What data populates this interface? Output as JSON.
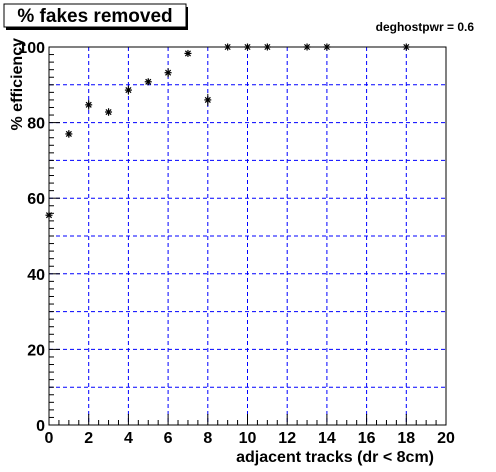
{
  "chart_data": {
    "type": "scatter",
    "title": "% fakes removed",
    "annotation": "deghostpwr = 0.6",
    "xlabel": "adjacent tracks (dr < 8cm)",
    "ylabel": "% efficiency",
    "xlim": [
      0,
      20
    ],
    "ylim": [
      0,
      100
    ],
    "x_ticks": [
      0,
      2,
      4,
      6,
      8,
      10,
      12,
      14,
      16,
      18,
      20
    ],
    "y_ticks": [
      0,
      20,
      40,
      60,
      80,
      100
    ],
    "x_tick_labels": [
      "0",
      "2",
      "4",
      "6",
      "8",
      "10",
      "12",
      "14",
      "16",
      "18",
      "20"
    ],
    "y_tick_labels": [
      "0",
      "20",
      "40",
      "60",
      "80",
      "100"
    ],
    "grid": true,
    "marker": "asterisk",
    "colors": {
      "grid": "#0000ff",
      "points": "#000000",
      "frame": "#000000"
    },
    "points": [
      {
        "x": 0,
        "y": 55.5,
        "err": 0.8
      },
      {
        "x": 1,
        "y": 77.0,
        "err": 1.0
      },
      {
        "x": 2,
        "y": 84.7,
        "err": 1.3
      },
      {
        "x": 3,
        "y": 82.8,
        "err": 1.0
      },
      {
        "x": 4,
        "y": 88.6,
        "err": 1.2
      },
      {
        "x": 5,
        "y": 90.8,
        "err": 0.8
      },
      {
        "x": 6,
        "y": 93.2,
        "err": 1.2
      },
      {
        "x": 7,
        "y": 98.3,
        "err": 0.6
      },
      {
        "x": 8,
        "y": 86.0,
        "err": 1.6
      },
      {
        "x": 9,
        "y": 100.0,
        "err": 0
      },
      {
        "x": 10,
        "y": 100.0,
        "err": 0
      },
      {
        "x": 11,
        "y": 100.0,
        "err": 0
      },
      {
        "x": 13,
        "y": 100.0,
        "err": 0
      },
      {
        "x": 14,
        "y": 100.0,
        "err": 0
      },
      {
        "x": 18,
        "y": 100.0,
        "err": 0
      }
    ]
  }
}
